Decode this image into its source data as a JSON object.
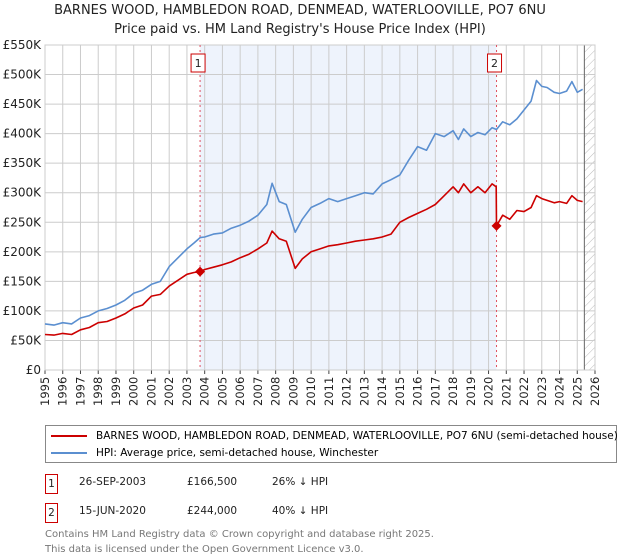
{
  "title": "BARNES WOOD, HAMBLEDON ROAD, DENMEAD, WATERLOOVILLE, PO7 6NU",
  "subtitle": "Price paid vs. HM Land Registry's House Price Index (HPI)",
  "colors": {
    "property": "#cc0000",
    "hpi": "#5b8fd0",
    "shade": "#eef3fc",
    "grid": "#cccccc"
  },
  "chart_data": {
    "type": "line",
    "xlim": [
      1995,
      2026
    ],
    "ylim": [
      0,
      550000
    ],
    "x_ticks": [
      "1995",
      "1996",
      "1997",
      "1998",
      "1999",
      "2000",
      "2001",
      "2002",
      "2003",
      "2004",
      "2005",
      "2006",
      "2007",
      "2008",
      "2009",
      "2010",
      "2011",
      "2012",
      "2013",
      "2014",
      "2015",
      "2016",
      "2017",
      "2018",
      "2019",
      "2020",
      "2021",
      "2022",
      "2023",
      "2024",
      "2025",
      "2026"
    ],
    "y_ticks": [
      {
        "value": 0,
        "label": "£0"
      },
      {
        "value": 50000,
        "label": "£50K"
      },
      {
        "value": 100000,
        "label": "£100K"
      },
      {
        "value": 150000,
        "label": "£150K"
      },
      {
        "value": 200000,
        "label": "£200K"
      },
      {
        "value": 250000,
        "label": "£250K"
      },
      {
        "value": 300000,
        "label": "£300K"
      },
      {
        "value": 350000,
        "label": "£350K"
      },
      {
        "value": 400000,
        "label": "£400K"
      },
      {
        "value": 450000,
        "label": "£450K"
      },
      {
        "value": 500000,
        "label": "£500K"
      },
      {
        "value": 550000,
        "label": "£550K"
      }
    ],
    "shaded_range": [
      2003.74,
      2020.45
    ],
    "hatched_from": 2025.4,
    "series": [
      {
        "name": "BARNES WOOD, HAMBLEDON ROAD, DENMEAD, WATERLOOVILLE, PO7 6NU (semi-detached house)",
        "color": "#cc0000",
        "x": [
          1995,
          1995.5,
          1996,
          1996.5,
          1997,
          1997.5,
          1998,
          1998.5,
          1999,
          1999.5,
          2000,
          2000.5,
          2001,
          2001.5,
          2002,
          2002.5,
          2003,
          2003.4,
          2003.74,
          2004,
          2004.5,
          2005,
          2005.5,
          2006,
          2006.5,
          2007,
          2007.5,
          2007.8,
          2008.2,
          2008.6,
          2009.1,
          2009.5,
          2010,
          2010.5,
          2011,
          2011.5,
          2012,
          2012.5,
          2013,
          2013.5,
          2014,
          2014.5,
          2015,
          2015.5,
          2016,
          2016.5,
          2017,
          2017.5,
          2018,
          2018.3,
          2018.6,
          2019,
          2019.4,
          2019.8,
          2020.2,
          2020.43,
          2020.45,
          2020.8,
          2021.2,
          2021.6,
          2022,
          2022.4,
          2022.7,
          2023,
          2023.3,
          2023.7,
          2024,
          2024.4,
          2024.7,
          2025,
          2025.3
        ],
        "y": [
          60000,
          59000,
          62000,
          60000,
          68000,
          72000,
          80000,
          82000,
          88000,
          95000,
          105000,
          110000,
          125000,
          128000,
          142000,
          152000,
          162000,
          165000,
          166500,
          170000,
          174000,
          178000,
          183000,
          190000,
          196000,
          205000,
          215000,
          235000,
          222000,
          218000,
          172000,
          188000,
          200000,
          205000,
          210000,
          212000,
          215000,
          218000,
          220000,
          222000,
          225000,
          230000,
          250000,
          258000,
          265000,
          272000,
          280000,
          295000,
          310000,
          300000,
          315000,
          300000,
          310000,
          300000,
          315000,
          310000,
          244000,
          262000,
          255000,
          270000,
          268000,
          275000,
          295000,
          290000,
          287000,
          283000,
          285000,
          282000,
          295000,
          287000,
          285000
        ]
      },
      {
        "name": "HPI: Average price, semi-detached house, Winchester",
        "color": "#5b8fd0",
        "x": [
          1995,
          1995.5,
          1996,
          1996.5,
          1997,
          1997.5,
          1998,
          1998.5,
          1999,
          1999.5,
          2000,
          2000.5,
          2001,
          2001.5,
          2002,
          2002.5,
          2003,
          2003.4,
          2003.74,
          2004,
          2004.5,
          2005,
          2005.5,
          2006,
          2006.5,
          2007,
          2007.5,
          2007.8,
          2008.2,
          2008.6,
          2009.1,
          2009.5,
          2010,
          2010.5,
          2011,
          2011.5,
          2012,
          2012.5,
          2013,
          2013.5,
          2014,
          2014.5,
          2015,
          2015.5,
          2016,
          2016.5,
          2017,
          2017.5,
          2018,
          2018.3,
          2018.6,
          2019,
          2019.4,
          2019.8,
          2020.2,
          2020.45,
          2020.8,
          2021.2,
          2021.6,
          2022,
          2022.4,
          2022.7,
          2023,
          2023.3,
          2023.7,
          2024,
          2024.4,
          2024.7,
          2025,
          2025.3
        ],
        "y": [
          78000,
          76000,
          80000,
          78000,
          88000,
          92000,
          100000,
          104000,
          110000,
          118000,
          130000,
          135000,
          145000,
          150000,
          175000,
          190000,
          205000,
          215000,
          224000,
          225000,
          230000,
          232000,
          240000,
          245000,
          252000,
          262000,
          280000,
          316000,
          285000,
          280000,
          233000,
          255000,
          275000,
          282000,
          290000,
          285000,
          290000,
          295000,
          300000,
          298000,
          315000,
          322000,
          330000,
          355000,
          378000,
          372000,
          400000,
          395000,
          405000,
          390000,
          408000,
          395000,
          402000,
          398000,
          410000,
          407000,
          420000,
          415000,
          425000,
          440000,
          455000,
          490000,
          480000,
          478000,
          470000,
          468000,
          472000,
          488000,
          470000,
          475000
        ]
      }
    ],
    "markers": [
      {
        "label": "1",
        "x": 2003.74,
        "y": 166500
      },
      {
        "label": "2",
        "x": 2020.45,
        "y": 244000
      }
    ]
  },
  "legend": {
    "property": "BARNES WOOD, HAMBLEDON ROAD, DENMEAD, WATERLOOVILLE, PO7 6NU (semi-detached house)",
    "hpi": "HPI: Average price, semi-detached house, Winchester"
  },
  "transactions": [
    {
      "num": "1",
      "date": "26-SEP-2003",
      "price": "£166,500",
      "delta": "26% ↓ HPI"
    },
    {
      "num": "2",
      "date": "15-JUN-2020",
      "price": "£244,000",
      "delta": "40% ↓ HPI"
    }
  ],
  "footer": {
    "line1": "Contains HM Land Registry data © Crown copyright and database right 2025.",
    "line2": "This data is licensed under the Open Government Licence v3.0."
  }
}
